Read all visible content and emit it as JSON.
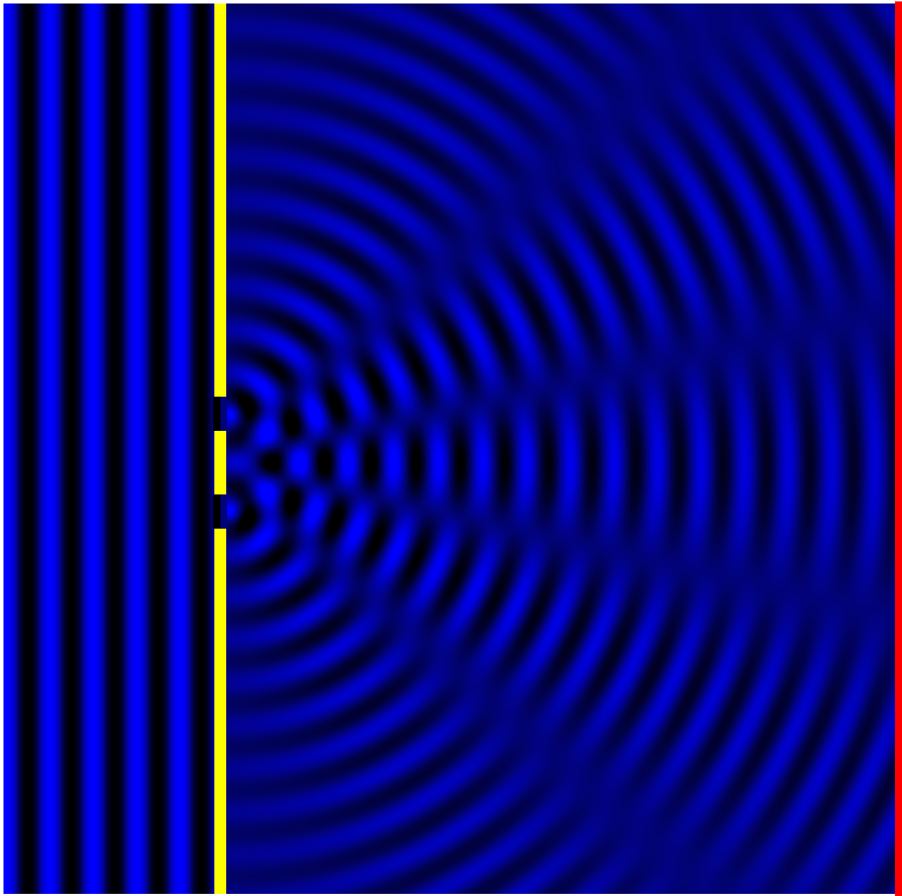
{
  "simulation": {
    "kind": "double-slit interference",
    "colors": {
      "background": "#ffffff",
      "wave_crest": "#0000ff",
      "wave_trough": "#000000",
      "wave_mid": "#02037a",
      "barrier": "#ffff00",
      "detector_screen": "#ff0000"
    }
  }
}
